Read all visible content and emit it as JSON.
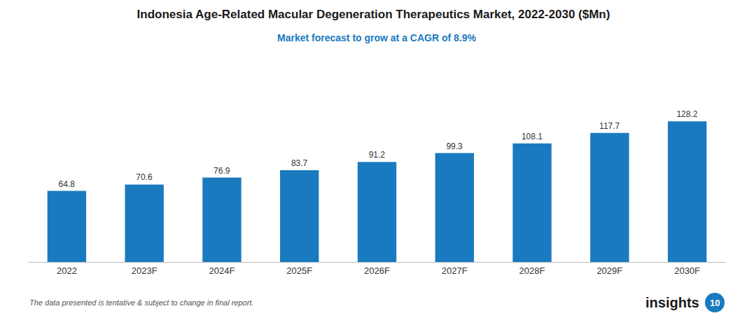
{
  "chart_data": {
    "type": "bar",
    "title": "Indonesia Age-Related Macular Degeneration Therapeutics Market, 2022-2030 ($Mn)",
    "subtitle": "Market forecast to grow at a CAGR of 8.9%",
    "categories": [
      "2022",
      "2023F",
      "2024F",
      "2025F",
      "2026F",
      "2027F",
      "2028F",
      "2029F",
      "2030F"
    ],
    "values": [
      64.8,
      70.6,
      76.9,
      83.7,
      91.2,
      99.3,
      108.1,
      117.7,
      128.2
    ],
    "color": "#1a7abf",
    "ylim": [
      0,
      175
    ],
    "grid": false,
    "data_labels": true,
    "tick_labels": "x",
    "annotations": [
      "The data presented is tentative & subject to change in final report.",
      "insights",
      "10"
    ]
  }
}
